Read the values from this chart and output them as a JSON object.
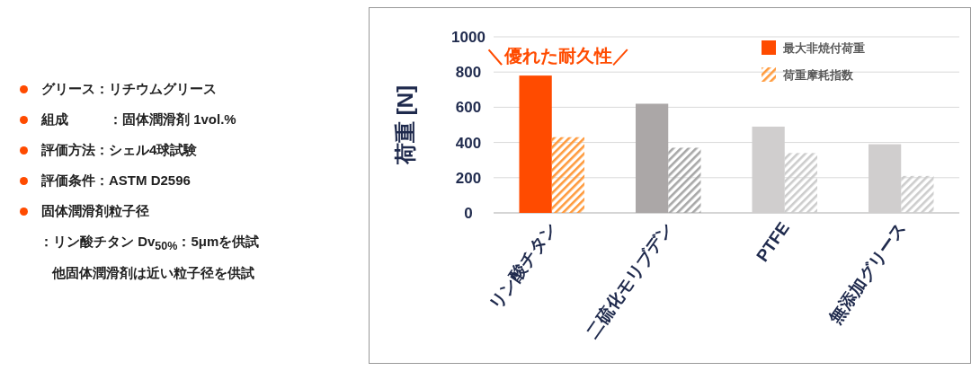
{
  "chart_data": [
    {
      "type": "other",
      "annotations": [
        "グリース：リチウムグリース",
        "組成　　　：固体潤滑剤 1vol.%",
        "評価方法：シェル4球試験",
        "評価条件：ASTM D2596",
        "固体潤滑剤粒子径",
        "：リン酸チタン Dv$_{50%}$：5μmを供試",
        "他固体潤滑剤は近い粒子径を供試"
      ]
    },
    {
      "type": "bar",
      "ylabel": "荷重 [N]",
      "categories": [
        "リン酸チタン",
        "二硫化モリブデン",
        "PTFE",
        "無添加グリース"
      ],
      "series": [
        {
          "name": "最大非焼付荷重",
          "color": "#ff4b00",
          "colors": [
            "#ff4b00",
            "#aba7a7",
            "#d0cece",
            "#d0cece"
          ],
          "values": [
            780,
            620,
            490,
            390
          ]
        },
        {
          "name": "荷重摩耗指数",
          "color": "#ff9a3c",
          "colors": [
            "#ff9a3c",
            "#a6a6a6",
            "#cccccc",
            "#cccccc"
          ],
          "values": [
            430,
            370,
            340,
            210
          ]
        }
      ],
      "ylim": [
        0,
        1000
      ],
      "yticks": [
        0,
        200,
        400,
        600,
        800,
        1000
      ],
      "grid": "y",
      "legend": "top right",
      "annotations": [
        "＼優れた耐久性／"
      ]
    }
  ]
}
